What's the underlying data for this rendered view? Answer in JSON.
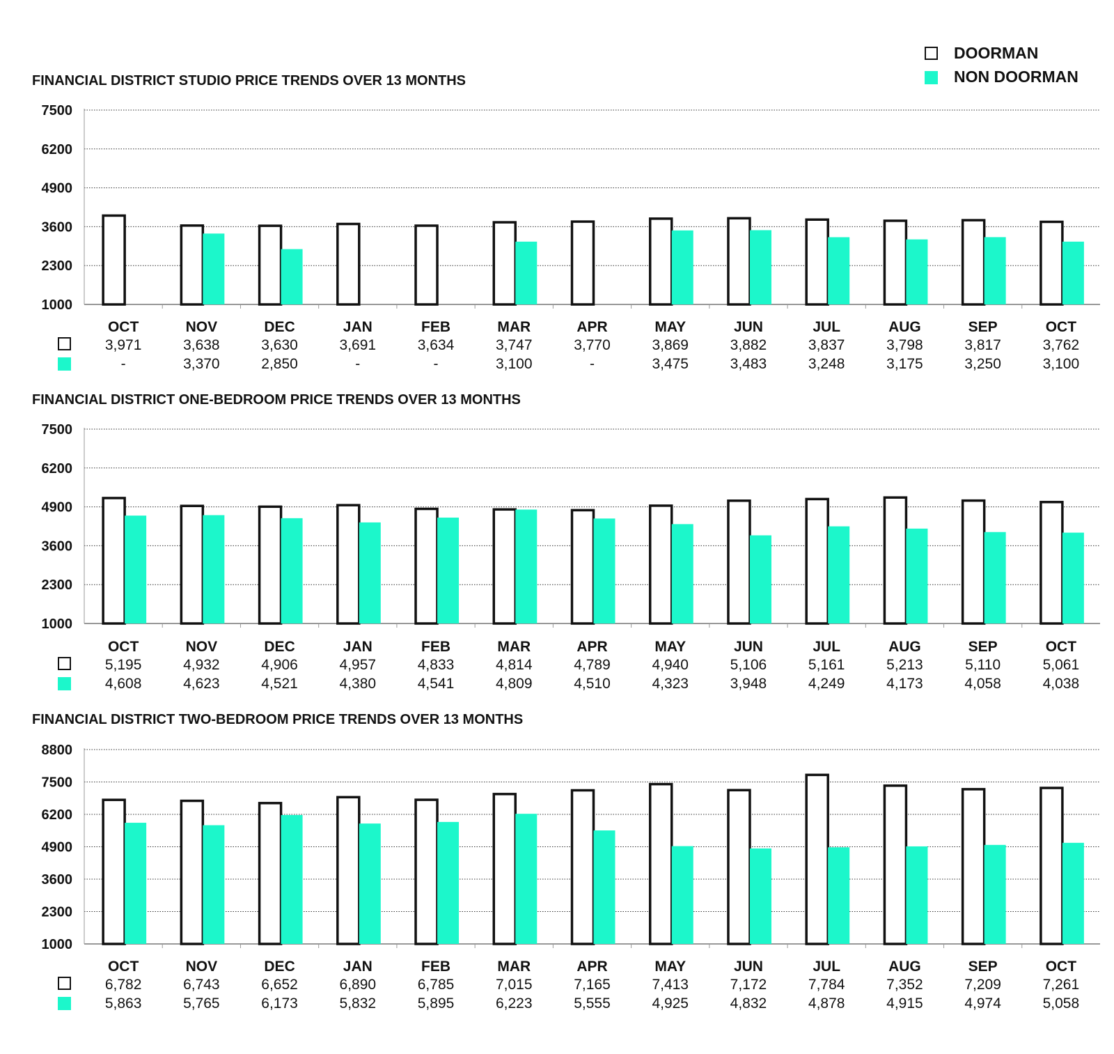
{
  "legend": {
    "doorman_label": "DOORMAN",
    "non_doorman_label": "NON DOORMAN"
  },
  "colors": {
    "doorman_fill": "#ffffff",
    "doorman_stroke": "#111111",
    "non_doorman_fill": "#1cf7cb",
    "grid": "#333333",
    "text": "#111111"
  },
  "chart_data": [
    {
      "type": "bar",
      "title": "FINANCIAL DISTRICT STUDIO PRICE TRENDS OVER 13 MONTHS",
      "categories": [
        "OCT",
        "NOV",
        "DEC",
        "JAN",
        "FEB",
        "MAR",
        "APR",
        "MAY",
        "JUN",
        "JUL",
        "AUG",
        "SEP",
        "OCT"
      ],
      "yticks": [
        1000,
        2300,
        3600,
        4900,
        6200,
        7500
      ],
      "ylim": [
        1000,
        7500
      ],
      "grid": true,
      "series": [
        {
          "name": "DOORMAN",
          "values": [
            3971,
            3638,
            3630,
            3691,
            3634,
            3747,
            3770,
            3869,
            3882,
            3837,
            3798,
            3817,
            3762
          ],
          "labels": [
            "3,971",
            "3,638",
            "3,630",
            "3,691",
            "3,634",
            "3,747",
            "3,770",
            "3,869",
            "3,882",
            "3,837",
            "3,798",
            "3,817",
            "3,762"
          ]
        },
        {
          "name": "NON DOORMAN",
          "values": [
            null,
            3370,
            2850,
            null,
            null,
            3100,
            null,
            3475,
            3483,
            3248,
            3175,
            3250,
            3100
          ],
          "labels": [
            "-",
            "3,370",
            "2,850",
            "-",
            "-",
            "3,100",
            "-",
            "3,475",
            "3,483",
            "3,248",
            "3,175",
            "3,250",
            "3,100"
          ]
        }
      ]
    },
    {
      "type": "bar",
      "title": "FINANCIAL DISTRICT ONE-BEDROOM PRICE TRENDS OVER 13 MONTHS",
      "categories": [
        "OCT",
        "NOV",
        "DEC",
        "JAN",
        "FEB",
        "MAR",
        "APR",
        "MAY",
        "JUN",
        "JUL",
        "AUG",
        "SEP",
        "OCT"
      ],
      "yticks": [
        1000,
        2300,
        3600,
        4900,
        6200,
        7500
      ],
      "ylim": [
        1000,
        7500
      ],
      "grid": true,
      "series": [
        {
          "name": "DOORMAN",
          "values": [
            5195,
            4932,
            4906,
            4957,
            4833,
            4814,
            4789,
            4940,
            5106,
            5161,
            5213,
            5110,
            5061
          ],
          "labels": [
            "5,195",
            "4,932",
            "4,906",
            "4,957",
            "4,833",
            "4,814",
            "4,789",
            "4,940",
            "5,106",
            "5,161",
            "5,213",
            "5,110",
            "5,061"
          ]
        },
        {
          "name": "NON DOORMAN",
          "values": [
            4608,
            4623,
            4521,
            4380,
            4541,
            4809,
            4510,
            4323,
            3948,
            4249,
            4173,
            4058,
            4038
          ],
          "labels": [
            "4,608",
            "4,623",
            "4,521",
            "4,380",
            "4,541",
            "4,809",
            "4,510",
            "4,323",
            "3,948",
            "4,249",
            "4,173",
            "4,058",
            "4,038"
          ]
        }
      ]
    },
    {
      "type": "bar",
      "title": "FINANCIAL DISTRICT TWO-BEDROOM PRICE TRENDS OVER 13 MONTHS",
      "categories": [
        "OCT",
        "NOV",
        "DEC",
        "JAN",
        "FEB",
        "MAR",
        "APR",
        "MAY",
        "JUN",
        "JUL",
        "AUG",
        "SEP",
        "OCT"
      ],
      "yticks": [
        1000,
        2300,
        3600,
        4900,
        6200,
        7500,
        8800
      ],
      "ylim": [
        1000,
        8800
      ],
      "grid": true,
      "series": [
        {
          "name": "DOORMAN",
          "values": [
            6782,
            6743,
            6652,
            6890,
            6785,
            7015,
            7165,
            7413,
            7172,
            7784,
            7352,
            7209,
            7261
          ],
          "labels": [
            "6,782",
            "6,743",
            "6,652",
            "6,890",
            "6,785",
            "7,015",
            "7,165",
            "7,413",
            "7,172",
            "7,784",
            "7,352",
            "7,209",
            "7,261"
          ]
        },
        {
          "name": "NON DOORMAN",
          "values": [
            5863,
            5765,
            6173,
            5832,
            5895,
            6223,
            5555,
            4925,
            4832,
            4878,
            4915,
            4974,
            5058
          ],
          "labels": [
            "5,863",
            "5,765",
            "6,173",
            "5,832",
            "5,895",
            "6,223",
            "5,555",
            "4,925",
            "4,832",
            "4,878",
            "4,915",
            "4,974",
            "5,058"
          ]
        }
      ]
    }
  ]
}
